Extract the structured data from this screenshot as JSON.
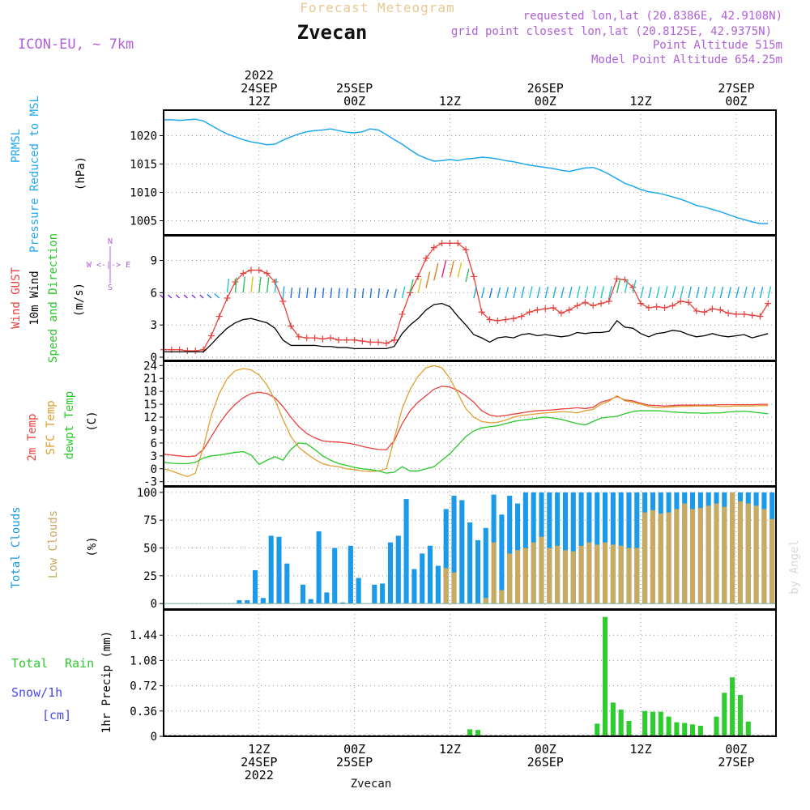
{
  "header": {
    "main_title": "Forecast Meteogram",
    "location": "Zvecan",
    "model": "ICON-EU, ~ 7km",
    "requested": "requested lon,lat (20.8386E, 42.9108N)",
    "grid_point": "grid point closest lon,lat (20.8125E, 42.9375N)",
    "point_altitude": "Point Altitude 515m",
    "model_altitude": "Model Point Altitude 654.25m",
    "footer_location": "Zvecan",
    "watermark": "by Angel"
  },
  "colors": {
    "pressure": "#1fa8f0",
    "gust": "#e8403c",
    "wind": "#000000",
    "temp2m": "#e8403c",
    "sfc": "#e0a030",
    "dewpt": "#28c828",
    "total_clouds": "#1a9ae8",
    "low_clouds": "#c8aa60",
    "rain": "#2ecc2e",
    "snow": "#4848e8",
    "title": "#e8c890",
    "info": "#b060d8"
  },
  "axis_time": {
    "top_labels": [
      {
        "t": 12,
        "lines": [
          "2022",
          "24SEP",
          "12Z"
        ]
      },
      {
        "t": 24,
        "lines": [
          "25SEP",
          "00Z"
        ]
      },
      {
        "t": 36,
        "lines": [
          "12Z"
        ]
      },
      {
        "t": 48,
        "lines": [
          "26SEP",
          "00Z"
        ]
      },
      {
        "t": 60,
        "lines": [
          "12Z"
        ]
      },
      {
        "t": 72,
        "lines": [
          "27SEP",
          "00Z"
        ]
      }
    ],
    "bottom_labels": [
      {
        "t": 12,
        "lines": [
          "12Z",
          "24SEP",
          "2022"
        ]
      },
      {
        "t": 24,
        "lines": [
          "00Z",
          "25SEP"
        ]
      },
      {
        "t": 36,
        "lines": [
          "12Z"
        ]
      },
      {
        "t": 48,
        "lines": [
          "00Z",
          "26SEP"
        ]
      },
      {
        "t": 60,
        "lines": [
          "12Z"
        ]
      },
      {
        "t": 72,
        "lines": [
          "00Z",
          "27SEP"
        ]
      }
    ],
    "t_range": [
      0,
      77
    ]
  },
  "chart_data": [
    {
      "type": "line",
      "panel": "pressure",
      "ylabels": [
        "PRMSL",
        "Pressure Reduced to MSL",
        "(hPa)"
      ],
      "ylim": [
        1002.5,
        1024.5
      ],
      "yticks": [
        1005,
        1010,
        1015,
        1020
      ],
      "x": [
        0,
        1,
        2,
        3,
        4,
        5,
        6,
        7,
        8,
        9,
        10,
        11,
        12,
        13,
        14,
        15,
        16,
        17,
        18,
        19,
        20,
        21,
        22,
        23,
        24,
        25,
        26,
        27,
        28,
        29,
        30,
        31,
        32,
        33,
        34,
        35,
        36,
        37,
        38,
        39,
        40,
        41,
        42,
        43,
        44,
        45,
        46,
        47,
        48,
        49,
        50,
        51,
        52,
        53,
        54,
        55,
        56,
        57,
        58,
        59,
        60,
        61,
        62,
        63,
        64,
        65,
        66,
        67,
        68,
        69,
        70,
        71,
        72,
        73,
        74,
        75,
        76
      ],
      "values": [
        1022.8,
        1022.8,
        1022.7,
        1022.8,
        1022.9,
        1022.6,
        1021.8,
        1021.0,
        1020.3,
        1019.8,
        1019.3,
        1018.9,
        1018.7,
        1018.4,
        1018.5,
        1019.2,
        1019.8,
        1020.3,
        1020.7,
        1020.9,
        1021.0,
        1021.2,
        1020.9,
        1020.6,
        1020.5,
        1020.7,
        1021.2,
        1021.0,
        1020.2,
        1019.3,
        1018.5,
        1017.5,
        1016.6,
        1016.0,
        1015.5,
        1015.6,
        1015.8,
        1015.6,
        1015.9,
        1016.0,
        1016.2,
        1016.1,
        1015.9,
        1015.6,
        1015.4,
        1015.1,
        1014.8,
        1014.6,
        1014.4,
        1014.2,
        1013.9,
        1013.7,
        1014.0,
        1014.3,
        1014.4,
        1013.9,
        1013.2,
        1012.4,
        1011.6,
        1011.1,
        1010.5,
        1010.1,
        1009.9,
        1009.6,
        1009.2,
        1008.8,
        1008.3,
        1007.7,
        1007.4,
        1007.0,
        1006.6,
        1006.1,
        1005.6,
        1005.2,
        1004.8,
        1004.5,
        1004.5
      ]
    },
    {
      "type": "line",
      "panel": "wind",
      "ylabels": [
        "Wind GUST",
        "10m Wind",
        "Speed and Direction",
        "(m/s)"
      ],
      "compass": [
        "N",
        "W <-|-> E",
        "S"
      ],
      "ylim": [
        -0.3,
        11.3
      ],
      "yticks": [
        0,
        3,
        6,
        9
      ],
      "x": [
        0,
        1,
        2,
        3,
        4,
        5,
        6,
        7,
        8,
        9,
        10,
        11,
        12,
        13,
        14,
        15,
        16,
        17,
        18,
        19,
        20,
        21,
        22,
        23,
        24,
        25,
        26,
        27,
        28,
        29,
        30,
        31,
        32,
        33,
        34,
        35,
        36,
        37,
        38,
        39,
        40,
        41,
        42,
        43,
        44,
        45,
        46,
        47,
        48,
        49,
        50,
        51,
        52,
        53,
        54,
        55,
        56,
        57,
        58,
        59,
        60,
        61,
        62,
        63,
        64,
        65,
        66,
        67,
        68,
        69,
        70,
        71,
        72,
        73,
        74,
        75,
        76
      ],
      "series": [
        {
          "name": "Wind GUST",
          "values": [
            0.7,
            0.7,
            0.7,
            0.6,
            0.6,
            0.7,
            2.0,
            3.8,
            5.5,
            7.0,
            7.8,
            8.1,
            8.1,
            7.8,
            7.0,
            5.2,
            2.9,
            1.9,
            1.8,
            1.8,
            1.7,
            1.8,
            1.6,
            1.6,
            1.6,
            1.5,
            1.4,
            1.4,
            1.3,
            1.6,
            4.0,
            6.0,
            7.5,
            9.2,
            10.2,
            10.6,
            10.6,
            10.6,
            10.0,
            7.5,
            4.2,
            3.5,
            3.4,
            3.5,
            3.6,
            3.8,
            4.2,
            4.4,
            4.5,
            4.6,
            4.1,
            4.4,
            4.8,
            5.1,
            4.8,
            5.0,
            5.2,
            7.3,
            7.2,
            6.5,
            5.0,
            4.6,
            4.7,
            4.6,
            4.8,
            5.2,
            5.1,
            4.3,
            4.2,
            4.5,
            4.4,
            4.1,
            4.0,
            4.0,
            3.9,
            3.8,
            5.0
          ]
        },
        {
          "name": "10m Wind",
          "values": [
            0.5,
            0.5,
            0.5,
            0.5,
            0.5,
            0.5,
            1.2,
            2.0,
            2.7,
            3.2,
            3.5,
            3.6,
            3.4,
            3.2,
            2.7,
            1.6,
            1.1,
            1.1,
            1.1,
            1.1,
            1.0,
            1.0,
            0.9,
            0.9,
            0.8,
            0.8,
            0.8,
            0.8,
            0.8,
            1.0,
            2.2,
            3.0,
            3.6,
            4.4,
            4.9,
            5.0,
            4.7,
            3.8,
            3.0,
            2.1,
            1.8,
            1.4,
            1.8,
            1.9,
            1.8,
            2.1,
            2.2,
            2.0,
            2.1,
            2.0,
            1.9,
            2.0,
            2.3,
            2.2,
            2.3,
            2.3,
            2.4,
            3.4,
            2.8,
            2.7,
            2.2,
            1.9,
            2.2,
            2.3,
            2.5,
            2.4,
            2.1,
            1.9,
            2.0,
            2.2,
            2.0,
            1.9,
            2.0,
            2.1,
            1.8,
            2.0,
            2.2
          ]
        }
      ]
    },
    {
      "type": "line",
      "panel": "temperature",
      "ylabels": [
        "2m Temp",
        "SFC Temp",
        "dewpt Temp",
        "(C)"
      ],
      "ylim": [
        -4,
        25
      ],
      "yticks": [
        -3,
        0,
        3,
        6,
        9,
        12,
        15,
        18,
        21,
        24
      ],
      "x": [
        0,
        1,
        2,
        3,
        4,
        5,
        6,
        7,
        8,
        9,
        10,
        11,
        12,
        13,
        14,
        15,
        16,
        17,
        18,
        19,
        20,
        21,
        22,
        23,
        24,
        25,
        26,
        27,
        28,
        29,
        30,
        31,
        32,
        33,
        34,
        35,
        36,
        37,
        38,
        39,
        40,
        41,
        42,
        43,
        44,
        45,
        46,
        47,
        48,
        49,
        50,
        51,
        52,
        53,
        54,
        55,
        56,
        57,
        58,
        59,
        60,
        61,
        62,
        63,
        64,
        65,
        66,
        67,
        68,
        69,
        70,
        71,
        72,
        73,
        74,
        75,
        76
      ],
      "series": [
        {
          "name": "2m Temp",
          "values": [
            3.4,
            3.2,
            3.0,
            2.8,
            3.0,
            4.5,
            7.5,
            10.5,
            13.0,
            15.0,
            16.5,
            17.5,
            17.8,
            17.5,
            16.5,
            14.5,
            12.0,
            9.8,
            8.2,
            7.2,
            6.5,
            6.3,
            6.2,
            6.0,
            5.7,
            5.2,
            4.8,
            4.5,
            4.4,
            6.5,
            10.5,
            13.5,
            15.5,
            17.0,
            18.5,
            19.2,
            19.0,
            18.2,
            17.0,
            15.5,
            13.5,
            12.5,
            12.2,
            12.4,
            12.7,
            13.0,
            13.3,
            13.5,
            13.6,
            13.7,
            13.9,
            14.0,
            14.2,
            14.0,
            14.3,
            15.5,
            16.0,
            16.8,
            16.0,
            15.8,
            15.2,
            14.8,
            14.7,
            14.6,
            14.7,
            14.8,
            14.8,
            14.8,
            14.8,
            14.8,
            14.9,
            14.9,
            14.9,
            14.9,
            14.9,
            15.0,
            15.0
          ]
        },
        {
          "name": "SFC Temp",
          "values": [
            0.0,
            -0.5,
            -1.2,
            -1.8,
            -1.0,
            5.0,
            12.5,
            17.5,
            21.0,
            22.8,
            23.3,
            23.0,
            21.8,
            19.5,
            16.0,
            11.5,
            7.5,
            5.0,
            3.5,
            2.2,
            1.2,
            0.7,
            0.5,
            0.0,
            -0.2,
            -0.5,
            -0.6,
            -0.5,
            0.0,
            7.0,
            14.0,
            18.5,
            21.5,
            23.5,
            24.0,
            23.5,
            21.0,
            17.5,
            14.0,
            12.0,
            11.0,
            10.7,
            10.8,
            11.3,
            12.0,
            12.4,
            12.6,
            12.8,
            13.0,
            13.1,
            13.3,
            13.2,
            13.0,
            13.5,
            13.8,
            15.0,
            15.7,
            17.0,
            15.8,
            15.5,
            15.0,
            14.5,
            14.2,
            14.3,
            14.4,
            14.5,
            14.5,
            14.6,
            14.6,
            14.6,
            14.5,
            14.5,
            14.6,
            14.6,
            14.6,
            14.7,
            14.7
          ]
        },
        {
          "name": "dewpt Temp",
          "values": [
            1.5,
            1.3,
            1.2,
            1.2,
            1.5,
            2.5,
            3.0,
            3.2,
            3.5,
            3.8,
            4.0,
            3.2,
            1.0,
            2.0,
            2.8,
            2.0,
            4.5,
            6.0,
            5.8,
            4.5,
            3.0,
            2.0,
            1.2,
            0.8,
            0.3,
            0.0,
            -0.2,
            -0.5,
            -1.0,
            -0.8,
            0.5,
            -0.5,
            -0.5,
            0.0,
            0.5,
            2.0,
            3.5,
            5.5,
            7.5,
            8.8,
            9.5,
            9.8,
            10.0,
            10.5,
            11.0,
            11.3,
            11.5,
            11.8,
            12.0,
            11.8,
            11.5,
            11.0,
            10.5,
            10.2,
            11.0,
            11.8,
            12.0,
            12.2,
            12.8,
            13.3,
            13.5,
            13.5,
            13.5,
            13.4,
            13.2,
            13.1,
            13.0,
            13.0,
            12.9,
            13.0,
            13.0,
            13.2,
            13.3,
            13.4,
            13.2,
            13.0,
            12.8
          ]
        }
      ]
    },
    {
      "type": "bar",
      "panel": "clouds",
      "ylabels": [
        "Total Clouds",
        "Low Clouds",
        "(%)"
      ],
      "ylim": [
        -5,
        105
      ],
      "yticks": [
        0,
        25,
        50,
        75,
        100
      ],
      "x": [
        0,
        1,
        2,
        3,
        4,
        5,
        6,
        7,
        8,
        9,
        10,
        11,
        12,
        13,
        14,
        15,
        16,
        17,
        18,
        19,
        20,
        21,
        22,
        23,
        24,
        25,
        26,
        27,
        28,
        29,
        30,
        31,
        32,
        33,
        34,
        35,
        36,
        37,
        38,
        39,
        40,
        41,
        42,
        43,
        44,
        45,
        46,
        47,
        48,
        49,
        50,
        51,
        52,
        53,
        54,
        55,
        56,
        57,
        58,
        59,
        60,
        61,
        62,
        63,
        64,
        65,
        66,
        67,
        68,
        69,
        70,
        71,
        72,
        73,
        74,
        75,
        76
      ],
      "series": [
        {
          "name": "Total Clouds",
          "values": [
            0,
            0,
            0,
            0,
            0,
            0,
            0,
            0,
            0,
            3,
            3,
            30,
            5,
            61,
            60,
            36,
            0,
            17,
            4,
            65,
            10,
            50,
            1,
            52,
            23,
            0,
            17,
            18,
            55,
            61,
            94,
            31,
            45,
            52,
            34,
            85,
            97,
            93,
            73,
            57,
            68,
            98,
            80,
            97,
            90,
            100,
            100,
            100,
            100,
            100,
            100,
            100,
            100,
            100,
            100,
            100,
            100,
            100,
            100,
            100,
            100,
            100,
            100,
            100,
            100,
            100,
            100,
            100,
            100,
            100,
            100,
            100,
            100,
            100,
            100,
            100,
            100
          ]
        },
        {
          "name": "Low Clouds",
          "values": [
            0,
            0,
            0,
            0,
            0,
            0,
            0,
            0,
            0,
            0,
            0,
            0,
            0,
            0,
            0,
            0,
            0,
            0,
            0,
            0,
            0,
            0,
            0,
            0,
            0,
            0,
            0,
            0,
            0,
            0,
            0,
            0,
            0,
            0,
            0,
            32,
            28,
            0,
            0,
            0,
            5,
            55,
            12,
            45,
            48,
            50,
            55,
            60,
            50,
            52,
            48,
            47,
            52,
            55,
            53,
            55,
            53,
            52,
            50,
            50,
            82,
            84,
            81,
            82,
            85,
            90,
            85,
            86,
            88,
            90,
            87,
            100,
            92,
            90,
            88,
            85,
            76
          ]
        }
      ]
    },
    {
      "type": "bar",
      "panel": "precip",
      "ylabels": [
        "1hr Precip (mm)"
      ],
      "left_labels": [
        "Total",
        "Rain",
        "Snow/1h",
        "[cm]"
      ],
      "ylim": [
        0,
        1.8
      ],
      "yticks": [
        0,
        0.36,
        0.72,
        1.08,
        1.44
      ],
      "ytick_labels": [
        "0",
        "0.36",
        "0.72",
        "1.08",
        "1.44"
      ],
      "x": [
        38,
        39,
        54,
        55,
        56,
        57,
        58,
        60,
        61,
        62,
        63,
        64,
        65,
        66,
        67,
        69,
        70,
        71,
        72,
        73
      ],
      "series": [
        {
          "name": "Total Rain",
          "values": [
            0.1,
            0.09,
            0.18,
            1.7,
            0.48,
            0.38,
            0.22,
            0.36,
            0.35,
            0.35,
            0.28,
            0.2,
            0.19,
            0.17,
            0.15,
            0.28,
            0.62,
            0.84,
            0.59,
            0.21
          ]
        }
      ]
    }
  ]
}
